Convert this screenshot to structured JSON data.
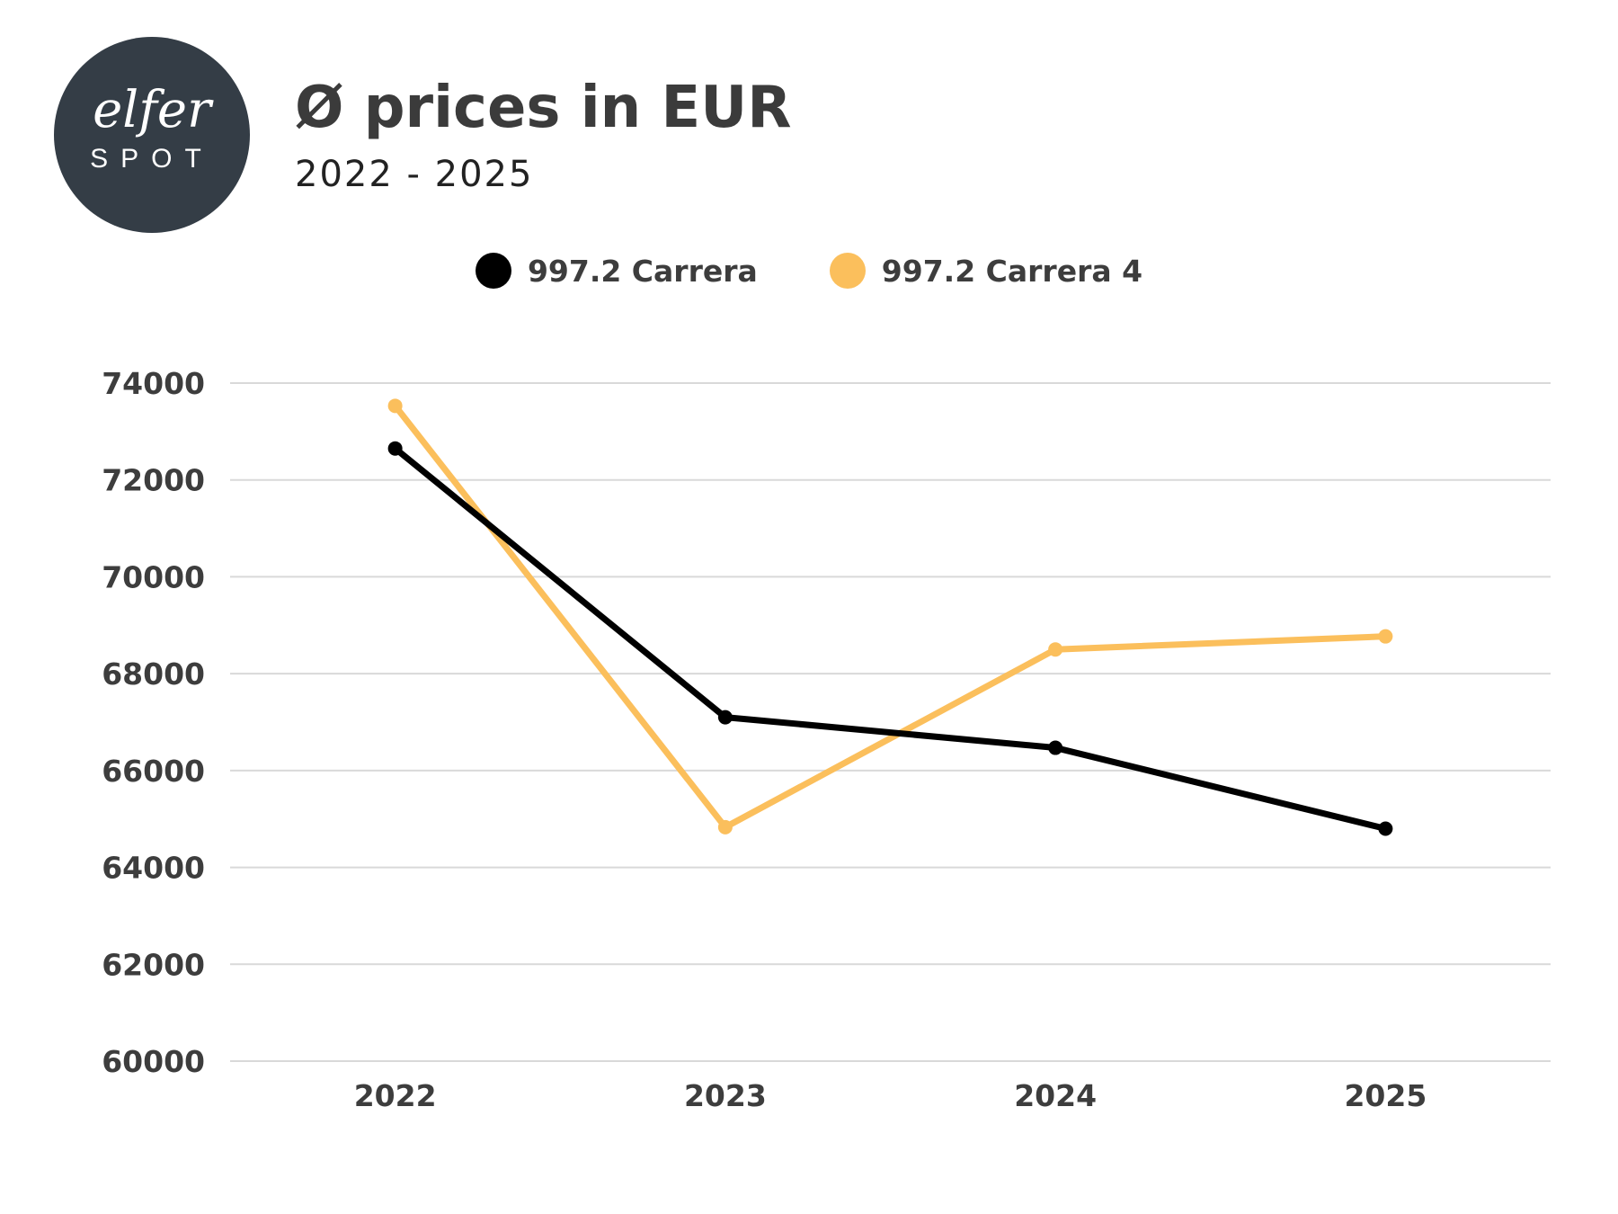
{
  "header": {
    "logo_text_top": "elfer",
    "logo_text_bottom": "SPOT",
    "title": "Ø prices in EUR",
    "subtitle": "2022 - 2025"
  },
  "colors": {
    "logo_bg": "#343d46",
    "series_1": "#000000",
    "series_2": "#fbbf5c",
    "grid": "#d9d9d9",
    "text": "#3d3d3d"
  },
  "chart_data": {
    "type": "line",
    "title": "Ø prices in EUR",
    "subtitle": "2022 - 2025",
    "xlabel": "",
    "ylabel": "",
    "categories": [
      "2022",
      "2023",
      "2024",
      "2025"
    ],
    "yticks": [
      60000,
      62000,
      64000,
      66000,
      68000,
      70000,
      72000,
      74000
    ],
    "ylim": [
      60000,
      74000
    ],
    "grid": true,
    "legend_position": "top-center",
    "series": [
      {
        "name": "997.2 Carrera",
        "color": "#000000",
        "values": [
          72650,
          67100,
          66470,
          64800
        ]
      },
      {
        "name": "997.2 Carrera 4",
        "color": "#fbbf5c",
        "values": [
          73530,
          64830,
          68500,
          68770
        ]
      }
    ]
  }
}
